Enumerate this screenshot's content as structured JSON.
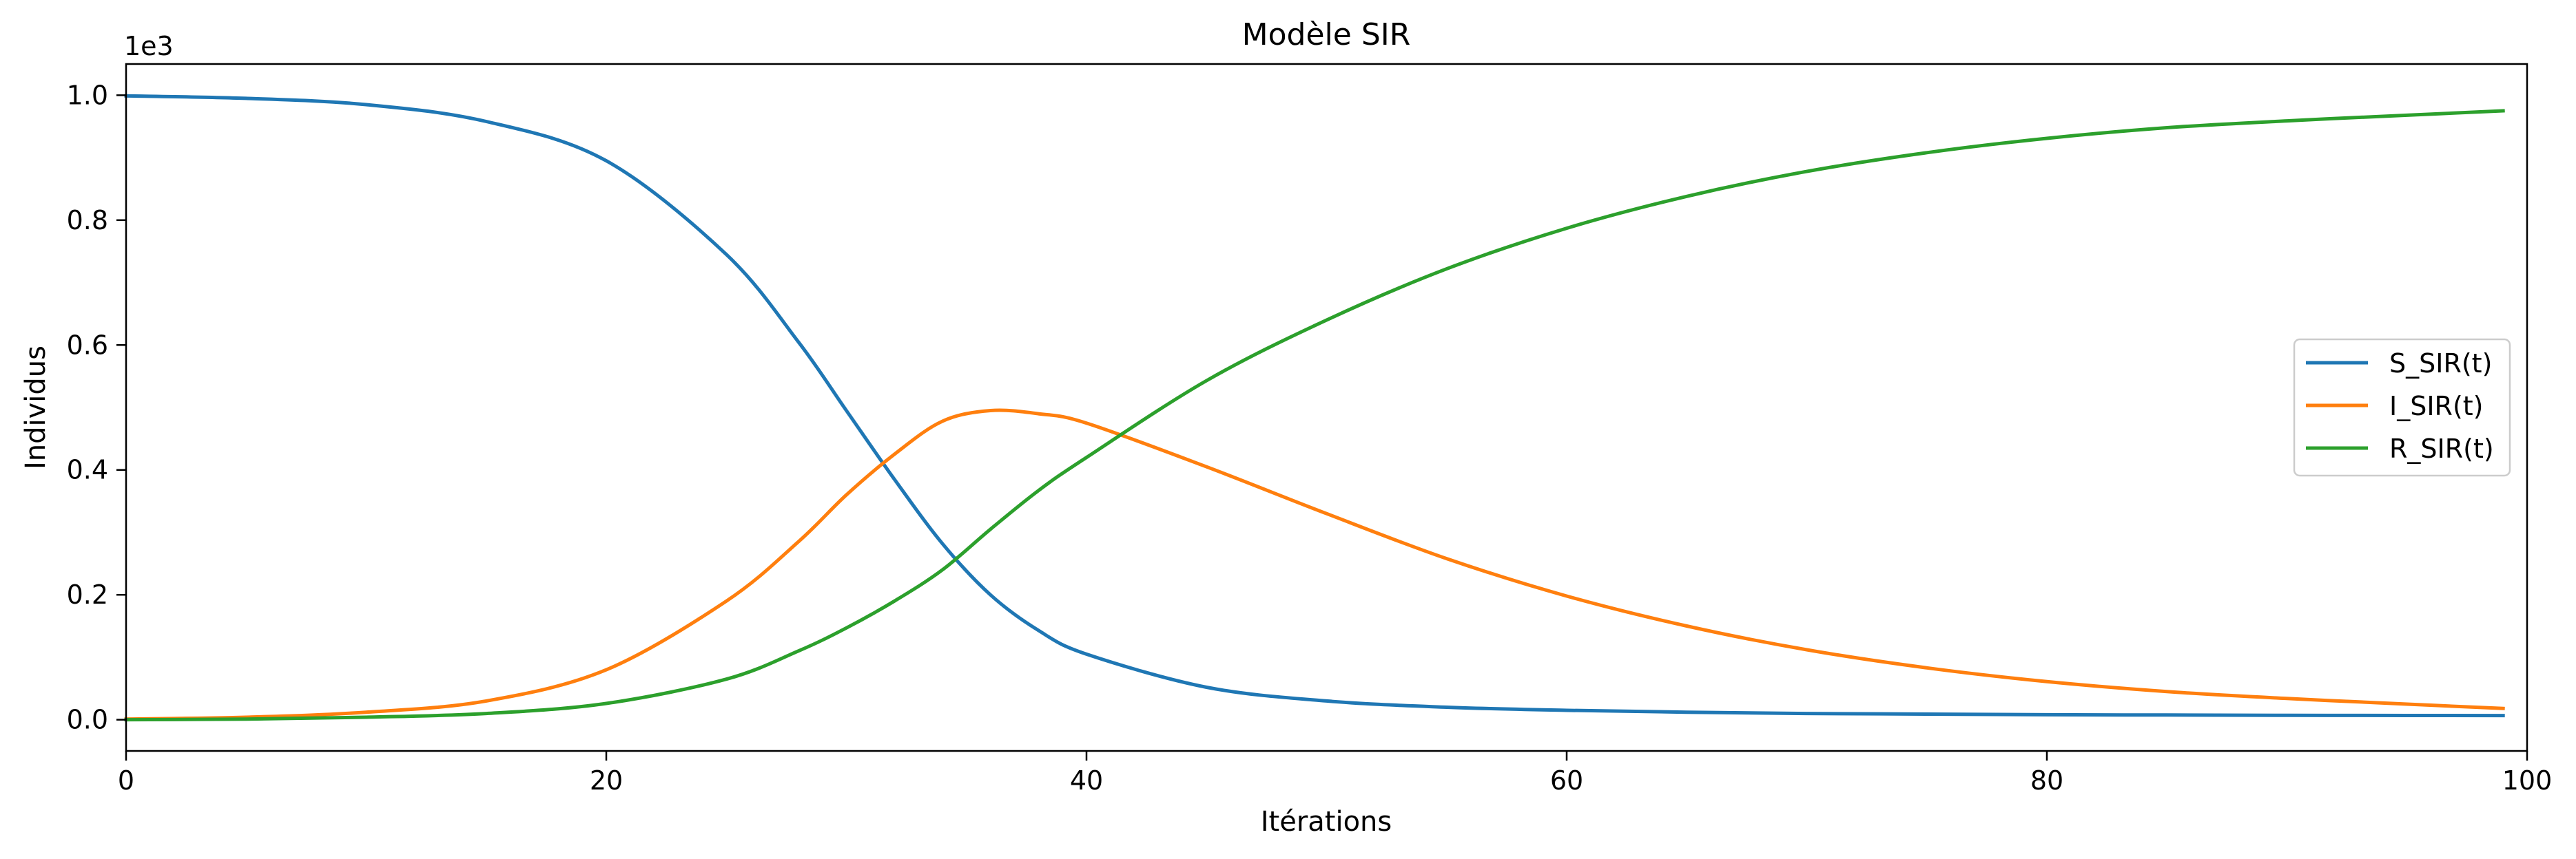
{
  "chart_data": {
    "type": "line",
    "title": "Modèle SIR",
    "xlabel": "Itérations",
    "ylabel": "Individus",
    "y_offset_label": "1e3",
    "xlim": [
      0,
      100
    ],
    "ylim": [
      -0.05,
      1.05
    ],
    "x_ticks": [
      0,
      20,
      40,
      60,
      80,
      100
    ],
    "y_ticks": [
      0.0,
      0.2,
      0.4,
      0.6,
      0.8,
      1.0
    ],
    "x_tick_labels": [
      "0",
      "20",
      "40",
      "60",
      "80",
      "100"
    ],
    "y_tick_labels": [
      "0.0",
      "0.2",
      "0.4",
      "0.6",
      "0.8",
      "1.0"
    ],
    "grid": false,
    "legend_position": "center-right",
    "x": [
      0,
      5,
      10,
      15,
      20,
      25,
      28,
      30,
      32,
      34,
      36,
      38,
      40,
      45,
      50,
      55,
      60,
      65,
      70,
      75,
      80,
      85,
      90,
      95,
      99
    ],
    "series": [
      {
        "name": "S_SIR(t)",
        "color": "#1f77b4",
        "values": [
          0.999,
          0.995,
          0.985,
          0.958,
          0.895,
          0.745,
          0.605,
          0.495,
          0.385,
          0.282,
          0.2,
          0.143,
          0.105,
          0.052,
          0.03,
          0.02,
          0.015,
          0.012,
          0.01,
          0.009,
          0.008,
          0.0075,
          0.007,
          0.0068,
          0.0066
        ]
      },
      {
        "name": "I_SIR(t)",
        "color": "#ff7f0e",
        "values": [
          0.001,
          0.004,
          0.012,
          0.03,
          0.08,
          0.19,
          0.285,
          0.36,
          0.425,
          0.478,
          0.495,
          0.49,
          0.475,
          0.405,
          0.33,
          0.258,
          0.198,
          0.15,
          0.112,
          0.083,
          0.061,
          0.045,
          0.034,
          0.025,
          0.018
        ]
      },
      {
        "name": "R_SIR(t)",
        "color": "#2ca02c",
        "values": [
          0.0,
          0.001,
          0.004,
          0.01,
          0.026,
          0.065,
          0.11,
          0.147,
          0.19,
          0.24,
          0.305,
          0.367,
          0.42,
          0.543,
          0.64,
          0.722,
          0.787,
          0.838,
          0.878,
          0.908,
          0.931,
          0.948,
          0.959,
          0.968,
          0.975
        ]
      }
    ]
  }
}
